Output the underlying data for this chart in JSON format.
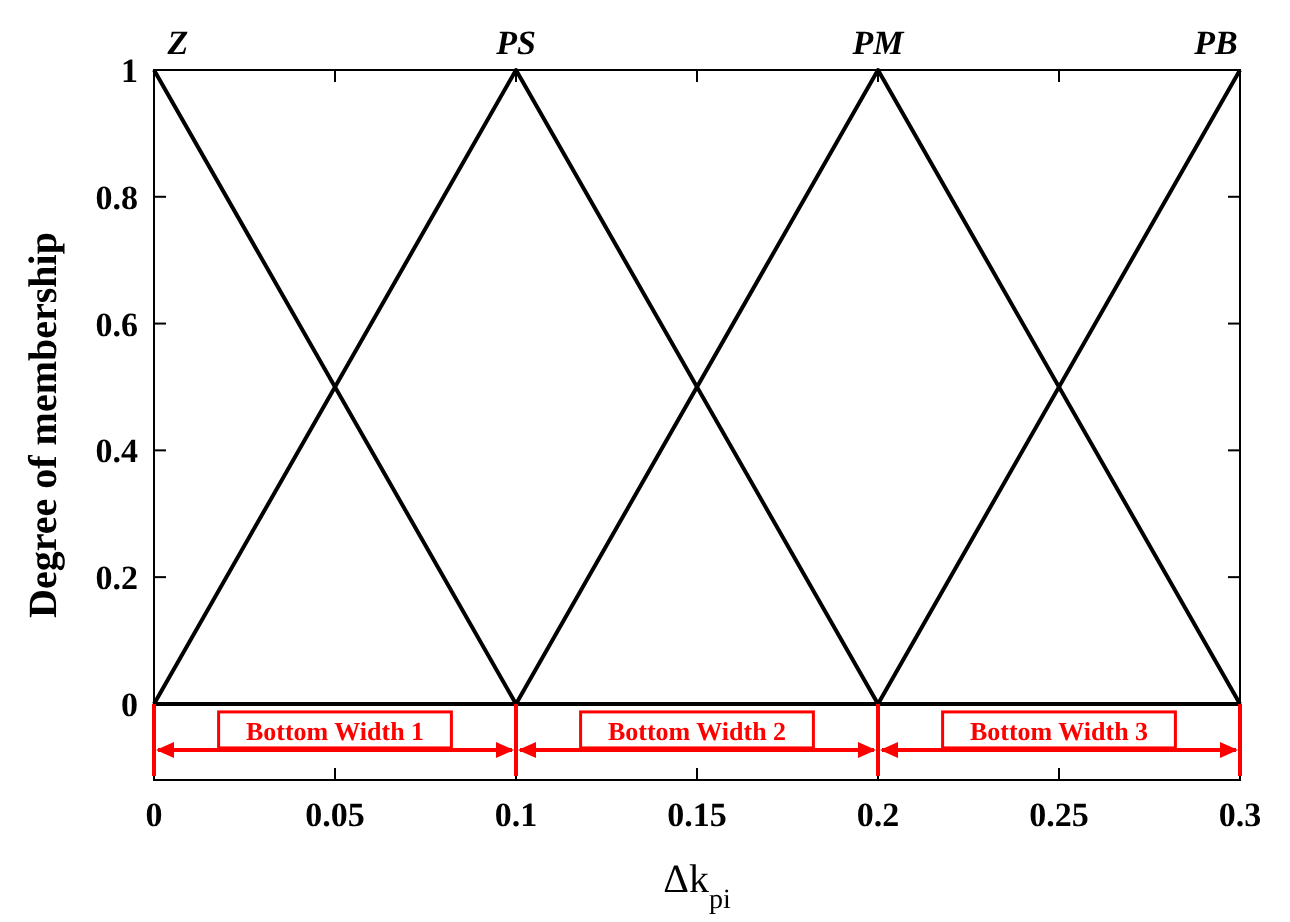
{
  "chart_data": {
    "type": "line",
    "ylabel": "Degree of membership",
    "xlabel": "Δk$_{pi}$",
    "x": [
      0,
      0.1,
      0.2,
      0.3
    ],
    "series": [
      {
        "name": "Z",
        "color": "#000000",
        "values": [
          1,
          0,
          0,
          0
        ]
      },
      {
        "name": "PS",
        "color": "#000000",
        "values": [
          0,
          1,
          0,
          0
        ]
      },
      {
        "name": "PM",
        "color": "#000000",
        "values": [
          0,
          0,
          1,
          0
        ]
      },
      {
        "name": "PB",
        "color": "#000000",
        "values": [
          0,
          0,
          0,
          1
        ]
      }
    ],
    "xlim": [
      0,
      0.3
    ],
    "xticks": [
      0,
      0.05,
      0.1,
      0.15,
      0.2,
      0.25,
      0.3
    ],
    "ylim": [
      -0.12,
      1
    ],
    "yticks": [
      0,
      0.2,
      0.4,
      0.6,
      0.8,
      1
    ],
    "annotations": [
      "Bottom Width 1",
      "Bottom Width 2",
      "Bottom Width 3"
    ],
    "grid": false,
    "marker": "none",
    "line_style": "solid"
  }
}
